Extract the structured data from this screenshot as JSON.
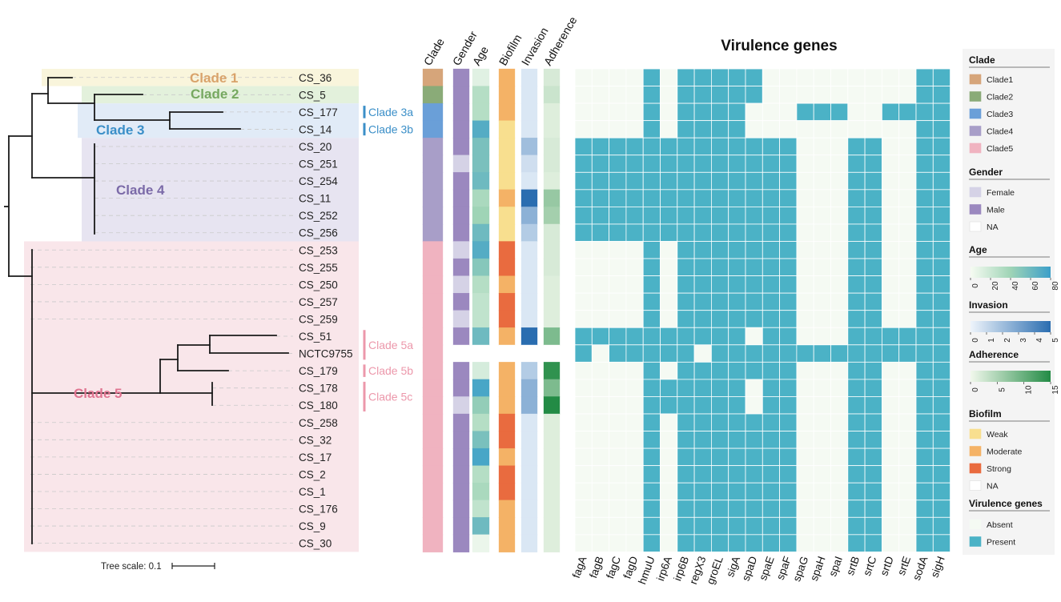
{
  "chart_data": {
    "type": "heatmap",
    "title": "Virulence genes",
    "tree_scale_label": "Tree scale: 0.1",
    "samples": [
      "CS_36",
      "CS_5",
      "CS_177",
      "CS_14",
      "CS_20",
      "CS_251",
      "CS_254",
      "CS_11",
      "CS_252",
      "CS_256",
      "CS_253",
      "CS_255",
      "CS_250",
      "CS_257",
      "CS_259",
      "CS_51",
      "NCTC9755",
      "CS_179",
      "CS_178",
      "CS_180",
      "CS_258",
      "CS_32",
      "CS_17",
      "CS_2",
      "CS_1",
      "CS_176",
      "CS_9",
      "CS_30"
    ],
    "clade_highlights": [
      {
        "label": "Clade 1",
        "color": "#d9a36b",
        "fill": "#f9f5dc"
      },
      {
        "label": "Clade 2",
        "color": "#76a860",
        "fill": "#e3f1dc"
      },
      {
        "label": "Clade 3",
        "color": "#3b8fc8",
        "fill": "#e1ebf7"
      },
      {
        "label": "Clade 4",
        "color": "#7b6aa8",
        "fill": "#e7e4f1"
      },
      {
        "label": "Clade 5",
        "color": "#e07591",
        "fill": "#f9e6ea"
      }
    ],
    "subclades": [
      {
        "label": "Clade 3a",
        "color": "#3b8fc8"
      },
      {
        "label": "Clade 3b",
        "color": "#3b8fc8"
      },
      {
        "label": "Clade 5a",
        "color": "#ec98ab"
      },
      {
        "label": "Clade 5b",
        "color": "#ec98ab"
      },
      {
        "label": "Clade 5c",
        "color": "#ec98ab"
      }
    ],
    "metadata_columns": [
      "Clade",
      "Gender",
      "Age",
      "Biofilm",
      "Invasion",
      "Adherence"
    ],
    "clade": [
      "Clade1",
      "Clade2",
      "Clade3",
      "Clade3",
      "Clade4",
      "Clade4",
      "Clade4",
      "Clade4",
      "Clade4",
      "Clade4",
      "Clade5",
      "Clade5",
      "Clade5",
      "Clade5",
      "Clade5",
      "Clade5",
      "Clade5",
      "Clade5",
      "Clade5",
      "Clade5",
      "Clade5",
      "Clade5",
      "Clade5",
      "Clade5",
      "Clade5",
      "Clade5",
      "Clade5",
      "Clade5"
    ],
    "gender": [
      "Male",
      "Male",
      "Male",
      "Male",
      "Male",
      "Female",
      "Male",
      "Male",
      "Male",
      "Male",
      "Female",
      "Male",
      "Female",
      "Male",
      "Female",
      "Male",
      "NA",
      "Male",
      "Male",
      "Female",
      "Male",
      "Male",
      "Male",
      "Male",
      "Male",
      "Male",
      "Male",
      "Male"
    ],
    "age": [
      10,
      30,
      30,
      70,
      55,
      55,
      60,
      35,
      40,
      60,
      70,
      50,
      30,
      25,
      25,
      60,
      null,
      15,
      75,
      45,
      30,
      55,
      75,
      30,
      35,
      25,
      60,
      5
    ],
    "biofilm": [
      "Moderate",
      "Moderate",
      "Moderate",
      "Weak",
      "Weak",
      "Weak",
      "Weak",
      "Moderate",
      "Weak",
      "Weak",
      "Strong",
      "Strong",
      "Moderate",
      "Strong",
      "Strong",
      "Moderate",
      "NA",
      "Moderate",
      "Moderate",
      "Moderate",
      "Strong",
      "Strong",
      "Moderate",
      "Strong",
      "Strong",
      "Moderate",
      "Moderate",
      "Moderate"
    ],
    "invasion": [
      0.5,
      0.5,
      0.5,
      0.5,
      2,
      0.8,
      0.5,
      5,
      2.5,
      1.5,
      0.5,
      0.5,
      0.5,
      0.5,
      0.5,
      5,
      null,
      1.5,
      2.5,
      2.5,
      0.5,
      0.5,
      0.5,
      0.5,
      0.5,
      0.5,
      0.5,
      0.5
    ],
    "adherence": [
      2,
      3,
      1.5,
      1.5,
      2,
      2,
      1.5,
      7,
      6,
      2,
      2,
      2,
      1.5,
      1.5,
      1.5,
      9,
      null,
      15,
      9,
      16,
      1.5,
      1.5,
      1.5,
      1.5,
      1.5,
      1.5,
      1.5,
      1.5
    ],
    "genes": [
      "fagA",
      "fagB",
      "fagC",
      "fagD",
      "hmuU",
      "irp6A",
      "irp6B",
      "regX3",
      "groEL",
      "sigA",
      "spaD",
      "spaE",
      "spaF",
      "spaG",
      "spaH",
      "spaI",
      "srtB",
      "srtC",
      "srtD",
      "srtE",
      "sodA",
      "sigH"
    ],
    "gene_matrix": [
      [
        0,
        0,
        0,
        0,
        1,
        0,
        1,
        1,
        1,
        1,
        1,
        0,
        0,
        0,
        0,
        0,
        0,
        0,
        0,
        0,
        1,
        1
      ],
      [
        0,
        0,
        0,
        0,
        1,
        0,
        1,
        1,
        1,
        1,
        1,
        0,
        0,
        0,
        0,
        0,
        0,
        0,
        0,
        0,
        1,
        1
      ],
      [
        0,
        0,
        0,
        0,
        1,
        0,
        1,
        1,
        1,
        1,
        0,
        0,
        0,
        1,
        1,
        1,
        0,
        0,
        1,
        1,
        1,
        1
      ],
      [
        0,
        0,
        0,
        0,
        1,
        0,
        1,
        1,
        1,
        1,
        0,
        0,
        0,
        0,
        0,
        0,
        0,
        0,
        0,
        0,
        1,
        1
      ],
      [
        1,
        1,
        1,
        1,
        1,
        1,
        1,
        1,
        1,
        1,
        1,
        1,
        1,
        0,
        0,
        0,
        1,
        1,
        0,
        0,
        1,
        1
      ],
      [
        1,
        1,
        1,
        1,
        1,
        1,
        1,
        1,
        1,
        1,
        1,
        1,
        1,
        0,
        0,
        0,
        1,
        1,
        0,
        0,
        1,
        1
      ],
      [
        1,
        1,
        1,
        1,
        1,
        1,
        1,
        1,
        1,
        1,
        1,
        1,
        1,
        0,
        0,
        0,
        1,
        1,
        0,
        0,
        1,
        1
      ],
      [
        1,
        1,
        1,
        1,
        1,
        1,
        1,
        1,
        1,
        1,
        1,
        1,
        1,
        0,
        0,
        0,
        1,
        1,
        0,
        0,
        1,
        1
      ],
      [
        1,
        1,
        1,
        1,
        1,
        1,
        1,
        1,
        1,
        1,
        1,
        1,
        1,
        0,
        0,
        0,
        1,
        1,
        0,
        0,
        1,
        1
      ],
      [
        1,
        1,
        1,
        1,
        1,
        1,
        1,
        1,
        1,
        1,
        1,
        1,
        1,
        0,
        0,
        0,
        1,
        1,
        0,
        0,
        1,
        1
      ],
      [
        0,
        0,
        0,
        0,
        1,
        0,
        1,
        1,
        1,
        1,
        1,
        1,
        1,
        0,
        0,
        0,
        1,
        1,
        0,
        0,
        1,
        1
      ],
      [
        0,
        0,
        0,
        0,
        1,
        0,
        1,
        1,
        1,
        1,
        1,
        1,
        1,
        0,
        0,
        0,
        1,
        1,
        0,
        0,
        1,
        1
      ],
      [
        0,
        0,
        0,
        0,
        1,
        0,
        1,
        1,
        1,
        1,
        1,
        1,
        1,
        0,
        0,
        0,
        1,
        1,
        0,
        0,
        1,
        1
      ],
      [
        0,
        0,
        0,
        0,
        1,
        0,
        1,
        1,
        1,
        1,
        1,
        1,
        1,
        0,
        0,
        0,
        1,
        1,
        0,
        0,
        1,
        1
      ],
      [
        0,
        0,
        0,
        0,
        1,
        0,
        1,
        1,
        1,
        1,
        1,
        1,
        1,
        0,
        0,
        0,
        1,
        1,
        0,
        0,
        1,
        1
      ],
      [
        1,
        1,
        1,
        1,
        1,
        1,
        1,
        1,
        1,
        1,
        0,
        1,
        1,
        0,
        0,
        0,
        1,
        1,
        1,
        1,
        1,
        1
      ],
      [
        1,
        0,
        1,
        1,
        1,
        1,
        1,
        0,
        1,
        1,
        1,
        1,
        1,
        1,
        1,
        1,
        1,
        1,
        1,
        1,
        1,
        1
      ],
      [
        0,
        0,
        0,
        0,
        1,
        0,
        1,
        1,
        1,
        1,
        1,
        1,
        1,
        0,
        0,
        0,
        1,
        1,
        0,
        0,
        1,
        1
      ],
      [
        0,
        0,
        0,
        0,
        1,
        1,
        1,
        1,
        1,
        1,
        0,
        1,
        1,
        0,
        0,
        0,
        1,
        1,
        0,
        0,
        1,
        1
      ],
      [
        0,
        0,
        0,
        0,
        1,
        1,
        1,
        1,
        1,
        1,
        0,
        1,
        1,
        0,
        0,
        0,
        1,
        1,
        0,
        0,
        1,
        1
      ],
      [
        0,
        0,
        0,
        0,
        1,
        0,
        1,
        1,
        1,
        1,
        1,
        1,
        1,
        0,
        0,
        0,
        1,
        1,
        0,
        0,
        1,
        1
      ],
      [
        0,
        0,
        0,
        0,
        1,
        0,
        1,
        1,
        1,
        1,
        1,
        1,
        1,
        0,
        0,
        0,
        1,
        1,
        0,
        0,
        1,
        1
      ],
      [
        0,
        0,
        0,
        0,
        1,
        0,
        1,
        1,
        1,
        1,
        1,
        1,
        1,
        0,
        0,
        0,
        1,
        1,
        0,
        0,
        1,
        1
      ],
      [
        0,
        0,
        0,
        0,
        1,
        0,
        1,
        1,
        1,
        1,
        1,
        1,
        1,
        0,
        0,
        0,
        1,
        1,
        0,
        0,
        1,
        1
      ],
      [
        0,
        0,
        0,
        0,
        1,
        0,
        1,
        1,
        1,
        1,
        1,
        1,
        1,
        0,
        0,
        0,
        1,
        1,
        0,
        0,
        1,
        1
      ],
      [
        0,
        0,
        0,
        0,
        1,
        0,
        1,
        1,
        1,
        1,
        1,
        1,
        1,
        0,
        0,
        0,
        1,
        1,
        0,
        0,
        1,
        1
      ],
      [
        0,
        0,
        0,
        0,
        1,
        0,
        1,
        1,
        1,
        1,
        1,
        1,
        1,
        0,
        0,
        0,
        1,
        1,
        0,
        0,
        1,
        1
      ],
      [
        0,
        0,
        0,
        0,
        1,
        0,
        1,
        1,
        1,
        1,
        1,
        1,
        1,
        0,
        0,
        0,
        1,
        1,
        0,
        0,
        1,
        1
      ]
    ],
    "legend": {
      "clade": {
        "title": "Clade",
        "items": [
          {
            "label": "Clade1",
            "color": "#d6a57a"
          },
          {
            "label": "Clade2",
            "color": "#8aab78"
          },
          {
            "label": "Clade3",
            "color": "#6a9fd8"
          },
          {
            "label": "Clade4",
            "color": "#a89ec8"
          },
          {
            "label": "Clade5",
            "color": "#f0b3c0"
          }
        ]
      },
      "gender": {
        "title": "Gender",
        "items": [
          {
            "label": "Female",
            "color": "#d5d2e6"
          },
          {
            "label": "Male",
            "color": "#9b88bf"
          },
          {
            "label": "NA",
            "color": "#ffffff"
          }
        ]
      },
      "age": {
        "title": "Age",
        "ticks": [
          "0",
          "20",
          "40",
          "60",
          "80"
        ],
        "range": [
          0,
          80
        ],
        "low_color": "#f6fbf2",
        "mid_color": "#9fd4b6",
        "high_color": "#3c9fc9"
      },
      "invasion": {
        "title": "Invasion",
        "ticks": [
          "0",
          "1",
          "2",
          "3",
          "4",
          "5"
        ],
        "range": [
          0,
          5
        ],
        "low_color": "#eef4fb",
        "high_color": "#2a6db0"
      },
      "adherence": {
        "title": "Adherence",
        "ticks": [
          "0",
          "5",
          "10",
          "15"
        ],
        "range": [
          0,
          16
        ],
        "low_color": "#f1f8ec",
        "high_color": "#238b45"
      },
      "biofilm": {
        "title": "Biofilm",
        "items": [
          {
            "label": "Weak",
            "color": "#f8df8f"
          },
          {
            "label": "Moderate",
            "color": "#f4b266"
          },
          {
            "label": "Strong",
            "color": "#e96b3f"
          },
          {
            "label": "NA",
            "color": "#ffffff"
          }
        ]
      },
      "virulence": {
        "title": "Virulence genes",
        "items": [
          {
            "label": "Absent",
            "color": "#f5faf3"
          },
          {
            "label": "Present",
            "color": "#4bb2c6"
          }
        ]
      }
    }
  }
}
